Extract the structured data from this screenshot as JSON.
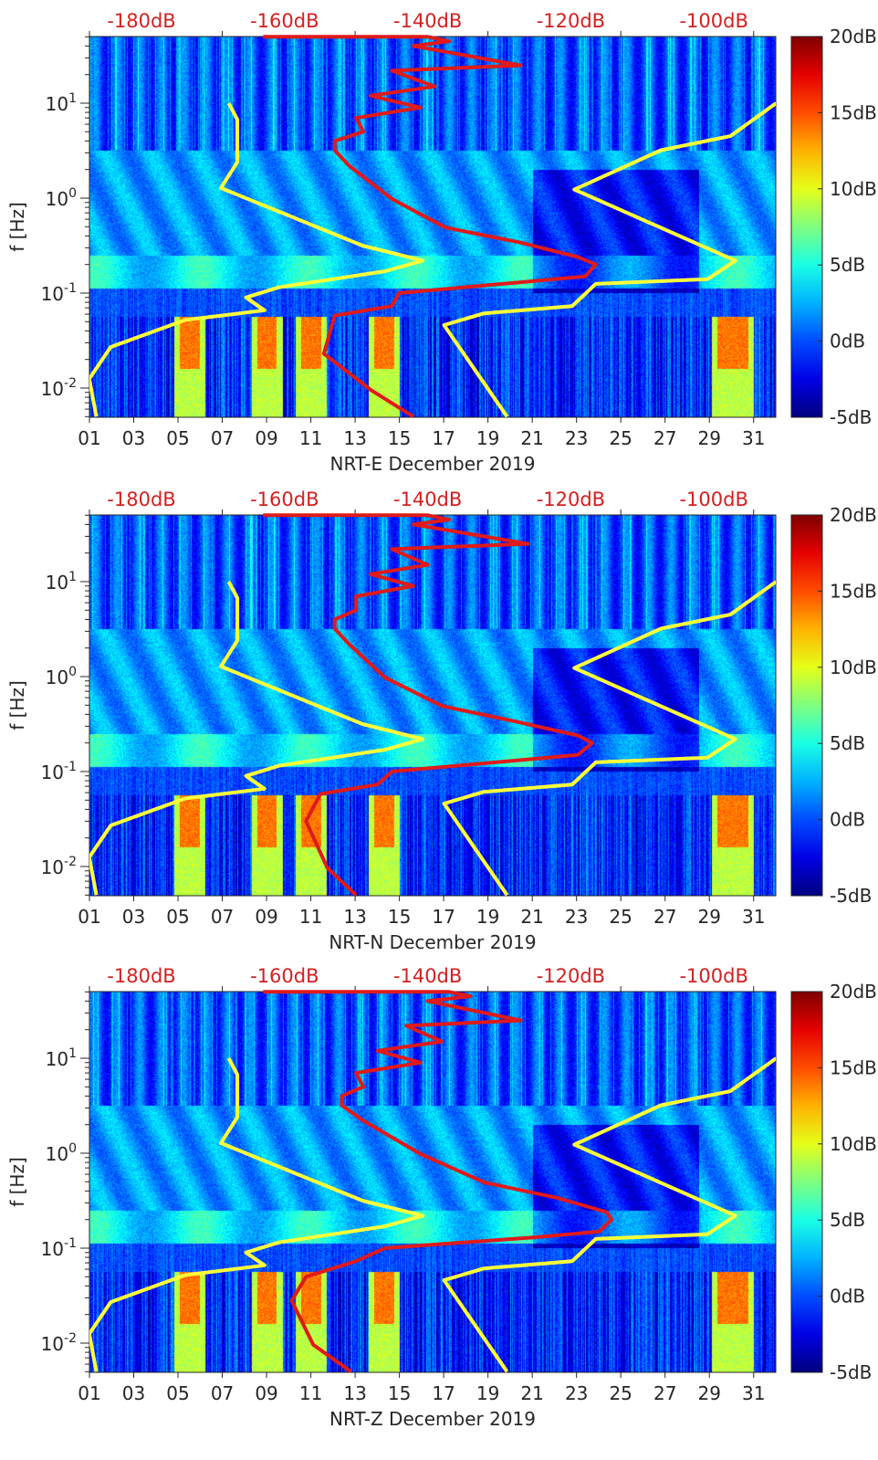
{
  "chart_data": {
    "type": "heatmap",
    "description_units": {
      "x": "day of December 2019",
      "y": "frequency [Hz]",
      "top_axis": "PSD dB",
      "color": "dB"
    },
    "xlim": [
      1,
      32
    ],
    "ylim_hz": [
      0.0049,
      50
    ],
    "x_ticks": [
      "01",
      "03",
      "05",
      "07",
      "09",
      "11",
      "13",
      "15",
      "17",
      "19",
      "21",
      "23",
      "25",
      "27",
      "29",
      "31"
    ],
    "x_tick_values": [
      1,
      3,
      5,
      7,
      9,
      11,
      13,
      15,
      17,
      19,
      21,
      23,
      25,
      27,
      29,
      31
    ],
    "y_ticks": [
      {
        "base": "10",
        "exp": "1",
        "value": 10
      },
      {
        "base": "10",
        "exp": "0",
        "value": 1
      },
      {
        "base": "10",
        "exp": "-1",
        "value": 0.1
      },
      {
        "base": "10",
        "exp": "-2",
        "value": 0.01
      }
    ],
    "ylabel": "f [Hz]",
    "top_ticks": [
      "-180dB",
      "-160dB",
      "-140dB",
      "-120dB",
      "-100dB"
    ],
    "top_tick_values": [
      -180,
      -160,
      -140,
      -120,
      -100
    ],
    "colorbar": {
      "labels": [
        "20dB",
        "15dB",
        "10dB",
        "5dB",
        "0dB",
        "-5dB"
      ],
      "values": [
        20,
        15,
        10,
        5,
        0,
        -5
      ],
      "colormap": "jet",
      "range": [
        -5,
        20
      ]
    },
    "noise_models": {
      "low_model_yellow": [
        [
          -167.8,
          10
        ],
        [
          -166.6,
          6.7
        ],
        [
          -166.6,
          2.4
        ],
        [
          -168.9,
          1.28
        ],
        [
          -149.1,
          0.316
        ],
        [
          -140.7,
          0.22
        ],
        [
          -145.9,
          0.17
        ],
        [
          -160.8,
          0.115
        ],
        [
          -165.4,
          0.09
        ],
        [
          -162.8,
          0.066
        ],
        [
          -173.9,
          0.052
        ],
        [
          -184.3,
          0.027
        ],
        [
          -187.3,
          0.0125
        ],
        [
          -186.3,
          0.005
        ]
      ],
      "high_model_yellow": [
        [
          -91.3,
          10
        ],
        [
          -97.7,
          4.5
        ],
        [
          -107.4,
          3.2
        ],
        [
          -119.5,
          1.23
        ],
        [
          -97,
          0.22
        ],
        [
          -100.9,
          0.14
        ],
        [
          -116.5,
          0.125
        ],
        [
          -119.8,
          0.073
        ],
        [
          -132.2,
          0.061
        ],
        [
          -137.7,
          0.046
        ],
        [
          -128.9,
          0.005
        ]
      ]
    },
    "panels": [
      {
        "xlabel": "NRT-E December 2019",
        "red_curve": [
          [
            -163,
            50
          ],
          [
            -140,
            50
          ],
          [
            -137,
            45
          ],
          [
            -142,
            40
          ],
          [
            -127,
            25
          ],
          [
            -145,
            22
          ],
          [
            -139,
            15
          ],
          [
            -148,
            12
          ],
          [
            -141,
            9
          ],
          [
            -150,
            7
          ],
          [
            -149,
            5
          ],
          [
            -153,
            4
          ],
          [
            -153,
            3.2
          ],
          [
            -151,
            2.2
          ],
          [
            -145,
            0.98
          ],
          [
            -137.5,
            0.49
          ],
          [
            -127,
            0.34
          ],
          [
            -119,
            0.24
          ],
          [
            -116.5,
            0.2
          ],
          [
            -118,
            0.15
          ],
          [
            -127,
            0.13
          ],
          [
            -144,
            0.1
          ],
          [
            -145,
            0.073
          ],
          [
            -153,
            0.058
          ],
          [
            -154.5,
            0.023
          ],
          [
            -148,
            0.0096
          ],
          [
            -142,
            0.005
          ]
        ]
      },
      {
        "xlabel": "NRT-N December 2019",
        "red_curve": [
          [
            -163,
            50
          ],
          [
            -140,
            50
          ],
          [
            -137,
            45
          ],
          [
            -142,
            40
          ],
          [
            -126,
            25
          ],
          [
            -145,
            22
          ],
          [
            -140,
            15
          ],
          [
            -148,
            12
          ],
          [
            -142,
            9
          ],
          [
            -150,
            7
          ],
          [
            -150,
            5
          ],
          [
            -153,
            4
          ],
          [
            -153,
            3.2
          ],
          [
            -151,
            2.2
          ],
          [
            -146,
            0.98
          ],
          [
            -138,
            0.49
          ],
          [
            -128,
            0.34
          ],
          [
            -119,
            0.24
          ],
          [
            -117,
            0.2
          ],
          [
            -119,
            0.15
          ],
          [
            -128,
            0.13
          ],
          [
            -145,
            0.1
          ],
          [
            -147,
            0.073
          ],
          [
            -155,
            0.058
          ],
          [
            -157,
            0.03
          ],
          [
            -154,
            0.0096
          ],
          [
            -150,
            0.005
          ]
        ]
      },
      {
        "xlabel": "NRT-Z December 2019",
        "red_curve": [
          [
            -163,
            50
          ],
          [
            -137,
            50
          ],
          [
            -134,
            45
          ],
          [
            -140,
            40
          ],
          [
            -127,
            25
          ],
          [
            -143,
            22
          ],
          [
            -138,
            15
          ],
          [
            -147,
            12
          ],
          [
            -141,
            9
          ],
          [
            -150,
            7
          ],
          [
            -149,
            5
          ],
          [
            -152,
            4
          ],
          [
            -152,
            3.2
          ],
          [
            -149,
            2.2
          ],
          [
            -141,
            0.98
          ],
          [
            -132,
            0.49
          ],
          [
            -122,
            0.34
          ],
          [
            -115,
            0.24
          ],
          [
            -114.3,
            0.2
          ],
          [
            -116,
            0.15
          ],
          [
            -125,
            0.13
          ],
          [
            -146,
            0.1
          ],
          [
            -150,
            0.073
          ],
          [
            -157,
            0.05
          ],
          [
            -159,
            0.028
          ],
          [
            -156,
            0.0096
          ],
          [
            -150.7,
            0.005
          ]
        ]
      }
    ],
    "colors": {
      "red_curve": "#e01a1a",
      "yellow_curve": "#ffff3a",
      "top_label": "#d42020"
    }
  }
}
